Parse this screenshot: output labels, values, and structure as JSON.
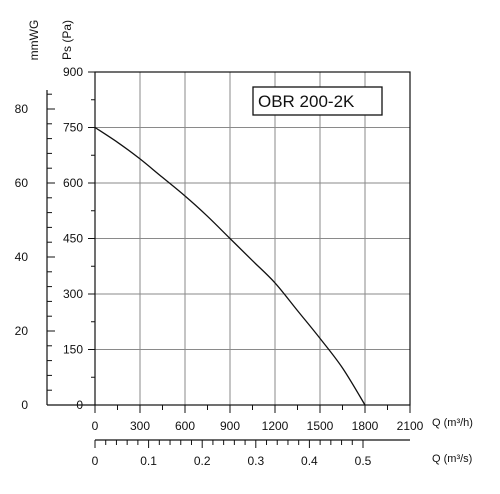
{
  "chart_data": {
    "type": "line",
    "title": "OBR 200-2K",
    "xlabel": "Q (m³/h)",
    "x2label": "Q (m³/s)",
    "ylabel": "Ps (Pa)",
    "y2label": "mmWG",
    "xlim": [
      0,
      2100
    ],
    "ylim": [
      0,
      900
    ],
    "x_ticks": [
      "0",
      "300",
      "600",
      "900",
      "1200",
      "1500",
      "1800",
      "2100"
    ],
    "y_ticks": [
      "0",
      "150",
      "300",
      "450",
      "600",
      "750",
      "900"
    ],
    "x2_ticks": [
      "0",
      "0.1",
      "0.2",
      "0.3",
      "0.4",
      "0.5"
    ],
    "x2_tick_values": [
      0,
      0.1,
      0.2,
      0.3,
      0.4,
      0.5
    ],
    "y2_ticks": [
      "0",
      "20",
      "40",
      "60",
      "80"
    ],
    "y2_tick_values": [
      0,
      20,
      40,
      60,
      80
    ],
    "grid": true,
    "series": [
      {
        "x": [
          0,
          150,
          300,
          450,
          600,
          750,
          900,
          1050,
          1200,
          1350,
          1500,
          1650,
          1800
        ],
        "y": [
          750,
          710,
          665,
          615,
          565,
          510,
          450,
          390,
          330,
          255,
          180,
          100,
          0
        ]
      }
    ]
  }
}
